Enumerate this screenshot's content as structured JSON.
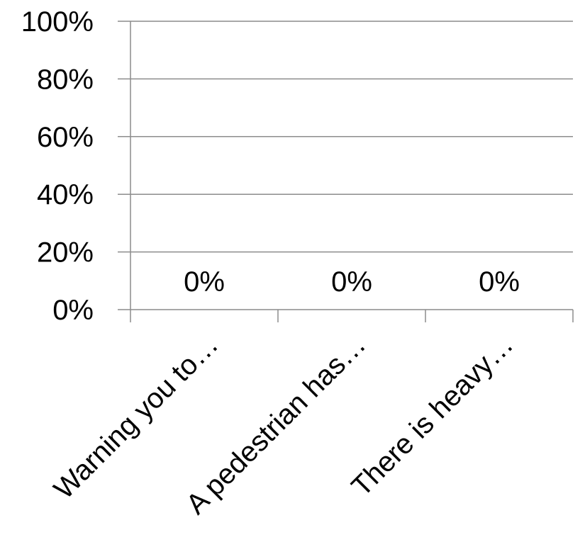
{
  "chart_data": {
    "type": "bar",
    "title": "",
    "xlabel": "",
    "ylabel": "",
    "categories": [
      "Warning you to…",
      "A pedestrian has…",
      "There is heavy…"
    ],
    "values": [
      0,
      0,
      0
    ],
    "data_labels": [
      "0%",
      "0%",
      "0%"
    ],
    "ylim": [
      0,
      100
    ],
    "yticks": [
      0,
      20,
      40,
      60,
      80,
      100
    ],
    "ytick_labels": [
      "0%",
      "20%",
      "40%",
      "60%",
      "80%",
      "100%"
    ],
    "grid": true,
    "legend": "none",
    "colors": {
      "gridline": "#8c8c8c",
      "axis": "#8c8c8c",
      "bar": "#4f81bd"
    }
  }
}
